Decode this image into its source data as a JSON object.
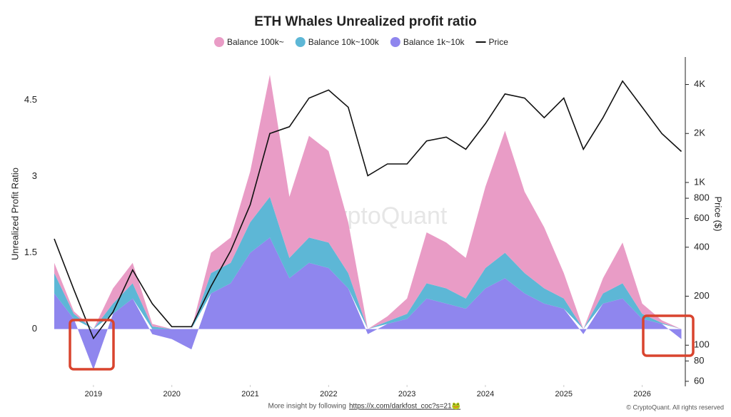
{
  "chart_data": {
    "type": "area",
    "stacked": true,
    "title": "ETH Whales Unrealized profit ratio",
    "y_label": "Unrealized Profit Ratio",
    "y2_label": "Price ($)",
    "y2_log": true,
    "watermark": "CryptoQuant",
    "footer": "More insight by following",
    "footer_link": "https://x.com/darkfost_coc?s=21🐸",
    "copyright": "© CryptoQuant. All rights reserved",
    "x": [
      2018.5,
      2018.75,
      2019.0,
      2019.25,
      2019.5,
      2019.75,
      2020.0,
      2020.25,
      2020.5,
      2020.75,
      2021.0,
      2021.25,
      2021.5,
      2021.75,
      2022.0,
      2022.25,
      2022.5,
      2022.75,
      2023.0,
      2023.25,
      2023.5,
      2023.75,
      2024.0,
      2024.25,
      2024.5,
      2024.75,
      2025.0,
      2025.25,
      2025.5,
      2025.75,
      2026.0,
      2026.25,
      2026.5
    ],
    "xlim": [
      2018.4,
      2026.55
    ],
    "xticks": [
      2019,
      2020,
      2021,
      2022,
      2023,
      2024,
      2025,
      2026
    ],
    "ylim": [
      -1.1,
      5.35
    ],
    "yticks": [
      0,
      1.5,
      3,
      4.5
    ],
    "y2lim": [
      57,
      5900
    ],
    "y2ticks": [
      60,
      80,
      100,
      200,
      400,
      600,
      800,
      {
        "value": 1000,
        "label": "1K"
      },
      {
        "value": 2000,
        "label": "2K"
      },
      {
        "value": 4000,
        "label": "4K"
      }
    ],
    "series": [
      {
        "name": "Balance 100k~",
        "color": "#e99cc6",
        "values": [
          0.2,
          0.05,
          0,
          0.3,
          0.4,
          0.05,
          0,
          0,
          0.4,
          0.5,
          1.0,
          2.4,
          1.2,
          2.0,
          1.8,
          1.0,
          0,
          0.1,
          0.3,
          1.0,
          0.9,
          0.8,
          1.6,
          2.4,
          1.6,
          1.2,
          0.5,
          0,
          0.3,
          0.8,
          0.2,
          0.05,
          0
        ]
      },
      {
        "name": "Balance 10k~100k",
        "color": "#5db7d6",
        "values": [
          0.4,
          0.1,
          0,
          0.2,
          0.3,
          0.05,
          0,
          0,
          0.4,
          0.4,
          0.6,
          0.8,
          0.4,
          0.5,
          0.5,
          0.3,
          0,
          0.05,
          0.1,
          0.3,
          0.3,
          0.2,
          0.4,
          0.5,
          0.4,
          0.3,
          0.2,
          0,
          0.2,
          0.3,
          0.1,
          0.02,
          0
        ]
      },
      {
        "name": "Balance 1k~10k",
        "color": "#8f86ee",
        "values": [
          0.7,
          0.2,
          -0.8,
          0.3,
          0.6,
          -0.1,
          -0.2,
          -0.4,
          0.7,
          0.9,
          1.5,
          1.8,
          1.0,
          1.3,
          1.2,
          0.8,
          -0.1,
          0.1,
          0.2,
          0.6,
          0.5,
          0.4,
          0.8,
          1.0,
          0.7,
          0.5,
          0.4,
          -0.1,
          0.5,
          0.6,
          0.2,
          0.1,
          -0.2
        ]
      },
      {
        "name": "Price",
        "color": "#111111",
        "axis": "y2",
        "values": [
          450,
          220,
          110,
          160,
          290,
          180,
          130,
          130,
          230,
          380,
          730,
          2000,
          2200,
          3300,
          3700,
          2900,
          1100,
          1300,
          1300,
          1800,
          1900,
          1600,
          2300,
          3500,
          3300,
          2500,
          3300,
          1600,
          2500,
          4200,
          2900,
          2000,
          1550
        ]
      }
    ]
  }
}
